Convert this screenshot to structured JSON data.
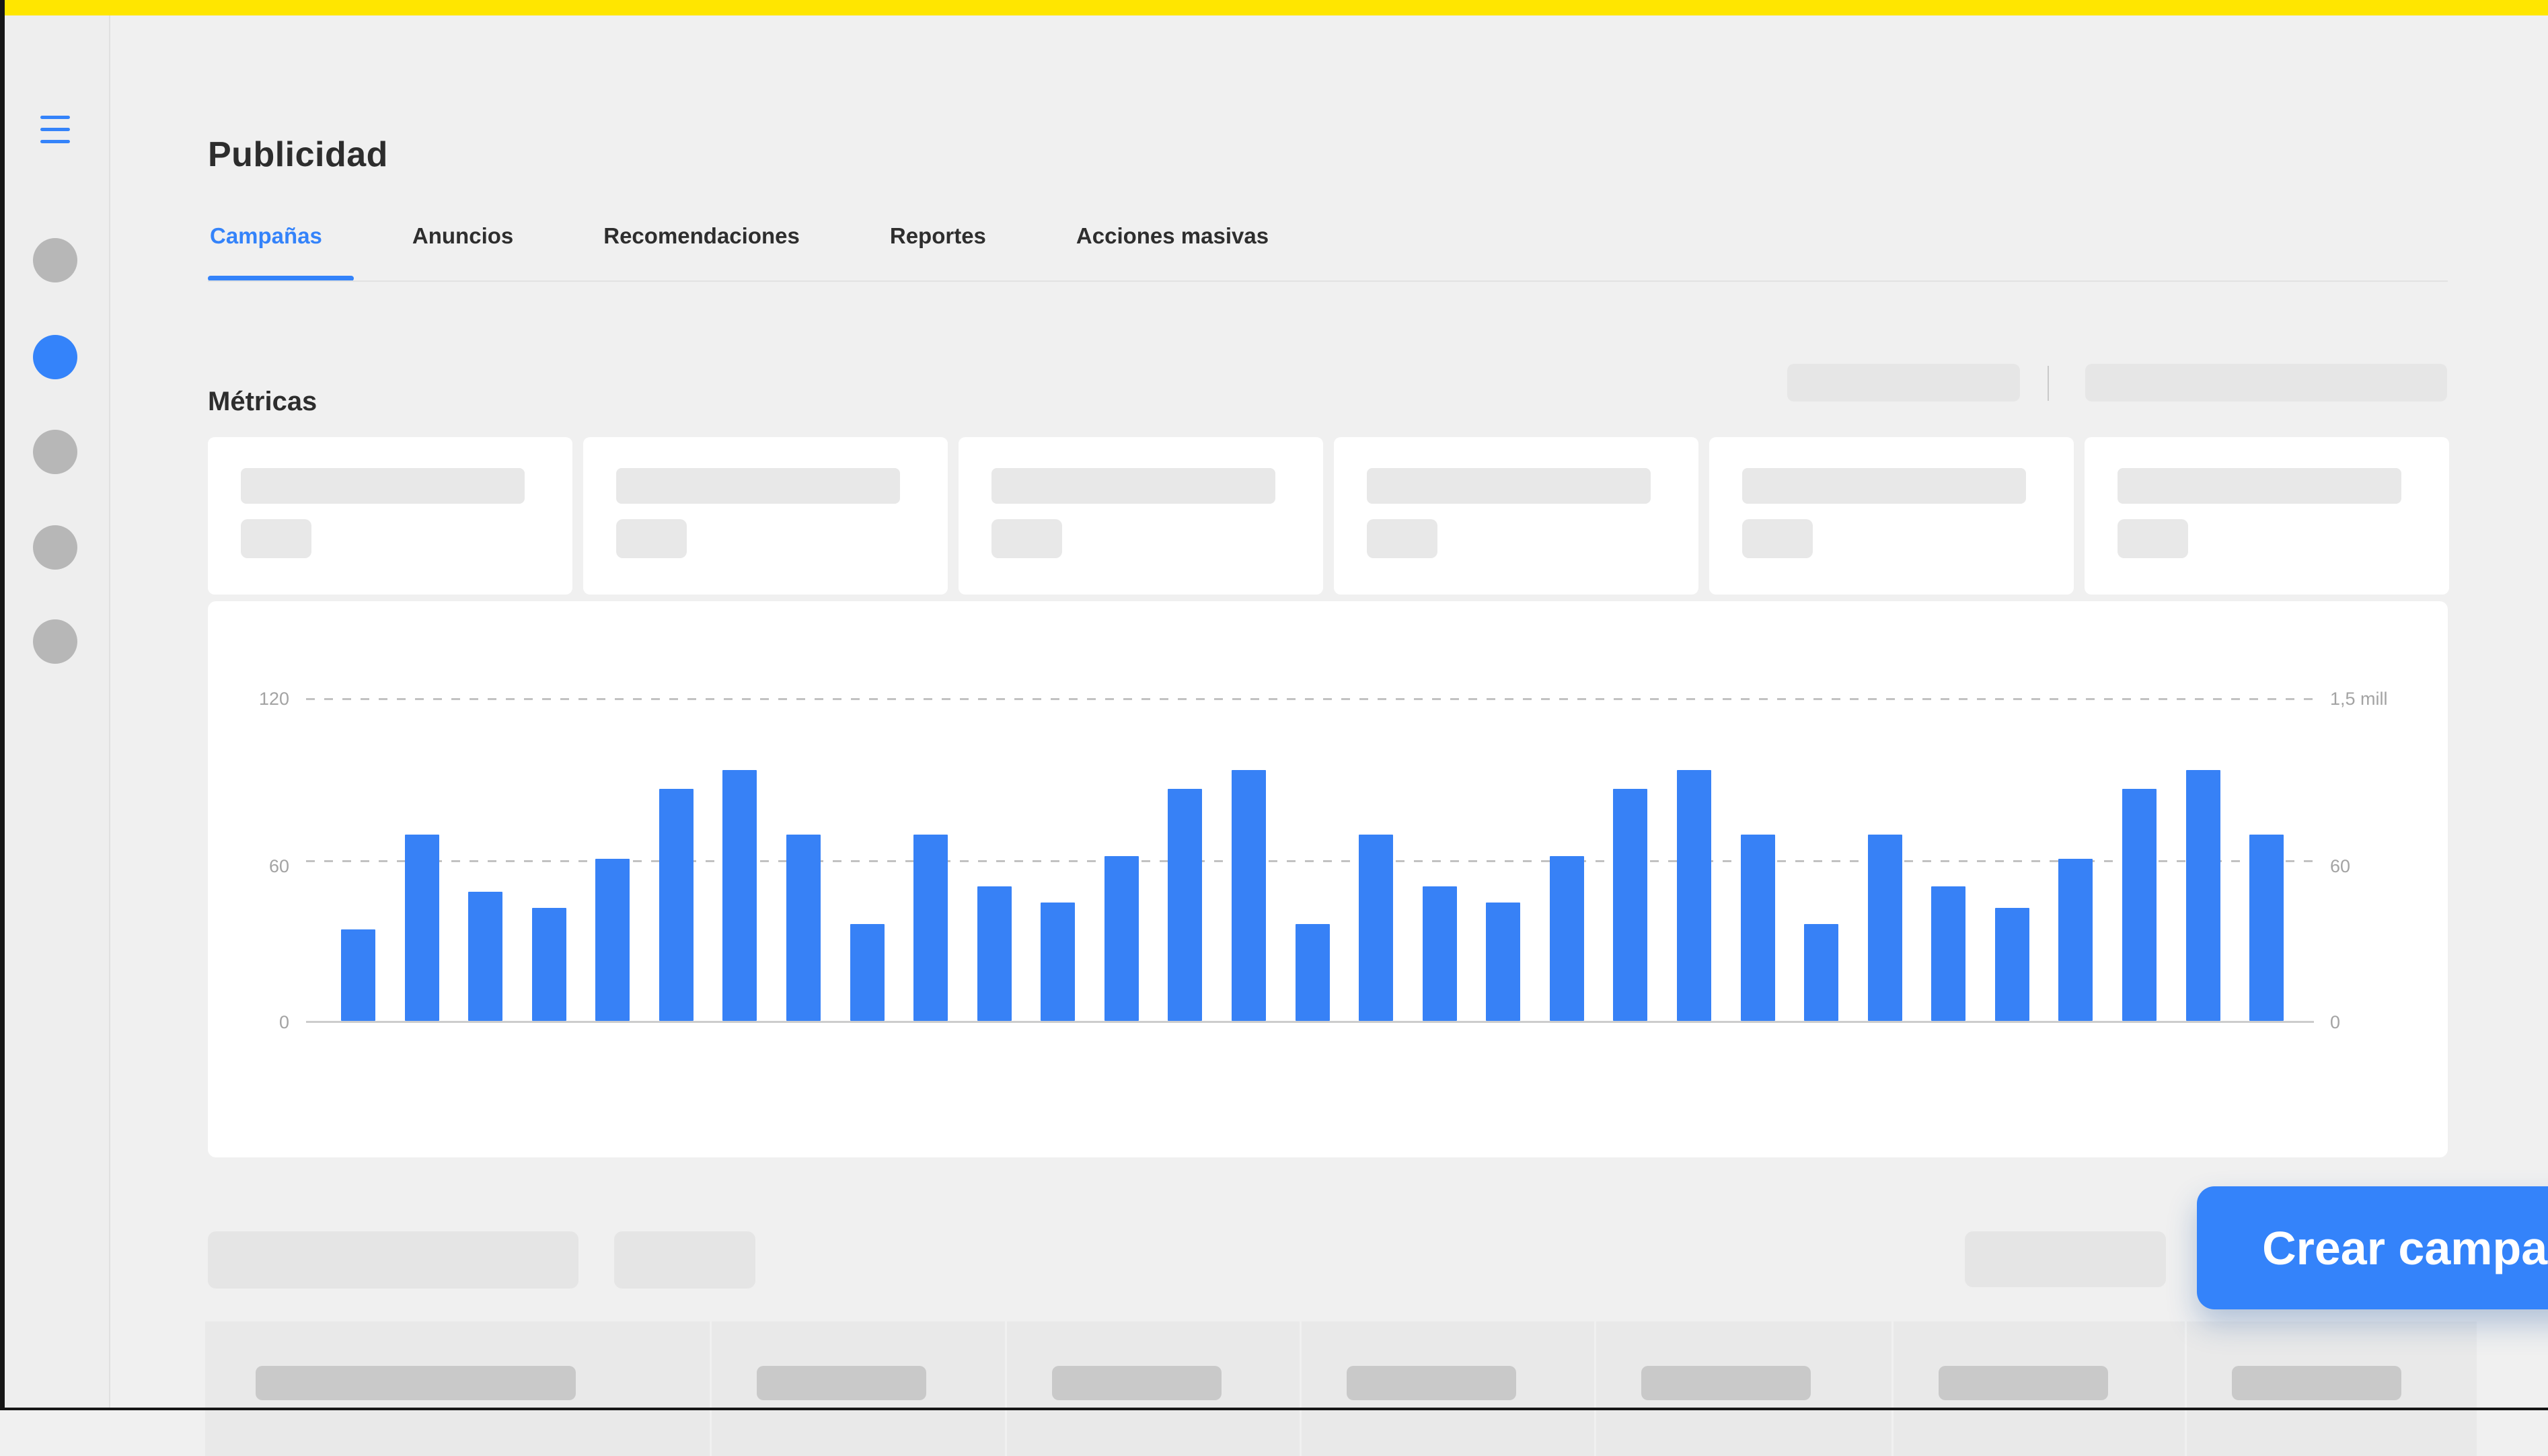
{
  "header": {
    "title": "Publicidad"
  },
  "tabs": {
    "items": [
      {
        "label": "Campañas",
        "active": true
      },
      {
        "label": "Anuncios",
        "active": false
      },
      {
        "label": "Recomendaciones",
        "active": false
      },
      {
        "label": "Reportes",
        "active": false
      },
      {
        "label": "Acciones masivas",
        "active": false
      }
    ]
  },
  "sidebar": {
    "menu_icon": "hamburger-menu",
    "items": [
      {
        "icon": "circle-placeholder",
        "active": false
      },
      {
        "icon": "circle-placeholder",
        "active": true
      },
      {
        "icon": "circle-placeholder",
        "active": false
      },
      {
        "icon": "circle-placeholder",
        "active": false
      },
      {
        "icon": "circle-placeholder",
        "active": false
      }
    ]
  },
  "metrics": {
    "heading": "Métricas",
    "summary_card_count": 6,
    "toolbar_skeleton_count": 2
  },
  "chart_data": {
    "type": "bar",
    "title": "",
    "values": [
      34,
      69,
      48,
      42,
      60,
      86,
      93,
      69,
      36,
      69,
      50,
      44,
      61,
      86,
      93,
      36,
      69,
      50,
      44,
      61,
      86,
      93,
      69,
      36,
      69,
      50,
      42,
      60,
      86,
      93,
      69
    ],
    "ylim": [
      0,
      120
    ],
    "y_axis_left_ticks": [
      "120",
      "60",
      "0"
    ],
    "y_axis_right_ticks": [
      "1,5 mill",
      "60",
      "0"
    ],
    "gridlines_at": [
      120,
      60
    ],
    "grid_style": "dashed",
    "baseline_at": 0,
    "legend_position": "none",
    "bar_color": "#3781f6"
  },
  "actions": {
    "create_campaign_label": "Crear campaña"
  },
  "colors": {
    "topbar_yellow": "#ffe600",
    "accent_blue": "#3483fa",
    "bar_blue": "#3781f6",
    "sidebar_item_gray": "#b7b7b7",
    "skeleton_gray": "#e6e6e6",
    "skeleton_dark_gray": "#c9c9c9"
  }
}
